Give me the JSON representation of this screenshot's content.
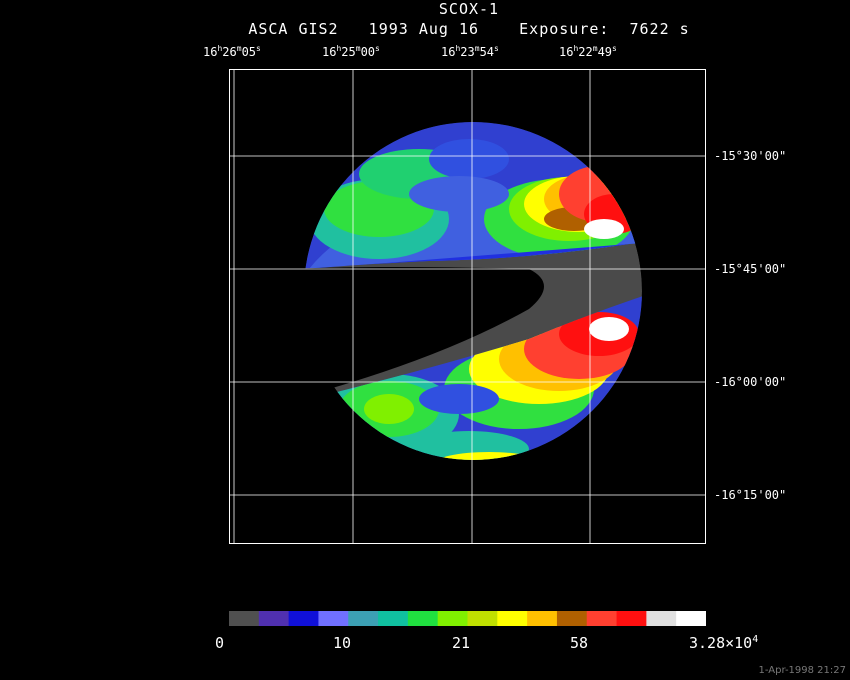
{
  "title": "SCOX-1",
  "subtitle": "ASCA GIS2   1993 Aug 16    Exposure:  7622 s",
  "ra_ticks": [
    {
      "h": "16",
      "m": "26",
      "s": "05"
    },
    {
      "h": "16",
      "m": "25",
      "s": "00"
    },
    {
      "h": "16",
      "m": "23",
      "s": "54"
    },
    {
      "h": "16",
      "m": "22",
      "s": "49"
    }
  ],
  "dec_ticks": [
    "-15°30'00\"",
    "-15°45'00\"",
    "-16°00'00\"",
    "-16°15'00\""
  ],
  "colorbar": {
    "colors": [
      "#505050",
      "#5030b0",
      "#1010d8",
      "#7070ff",
      "#3ca0b4",
      "#10c0a0",
      "#20e040",
      "#80f000",
      "#c0e000",
      "#ffff00",
      "#ffc000",
      "#b06000",
      "#ff4030",
      "#ff1010",
      "#e0e0e0",
      "#ffffff"
    ],
    "labels": [
      "0",
      "10",
      "21",
      "58",
      "3.28×10"
    ],
    "label_exponent": "4"
  },
  "timestamp": "1-Apr-1998 21:27"
}
